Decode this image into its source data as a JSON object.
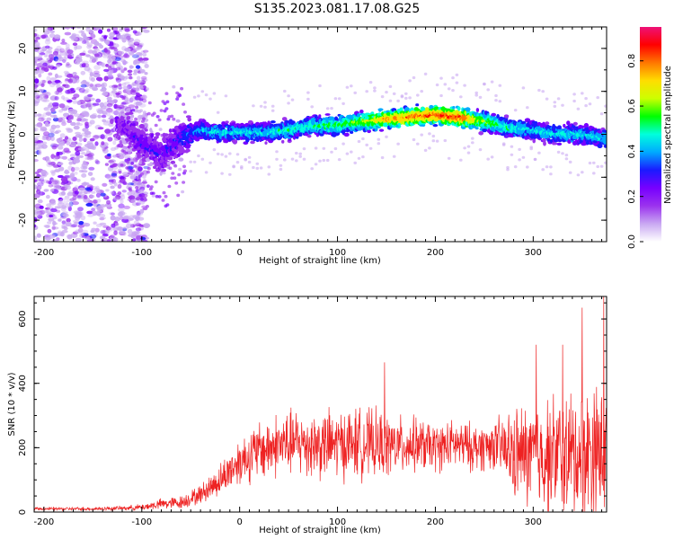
{
  "title": "S135.2023.081.17.08.G25",
  "colors": {
    "snr_line": "#ee2222",
    "axis": "#000000",
    "spectrogram_scale": [
      "#ffffff",
      "#c9a8f2",
      "#9b33ee",
      "#7700ff",
      "#1a1aff",
      "#00aaff",
      "#00ffdd",
      "#00ff00",
      "#ccff00",
      "#ffdd00",
      "#ff7700",
      "#ff0000",
      "#ee1177"
    ]
  },
  "chart_data": [
    {
      "type": "heatmap",
      "xlabel": "Height of straight line (km)",
      "ylabel": "Frequency (Hz)",
      "xlim": [
        -210,
        375
      ],
      "ylim": [
        -25,
        25
      ],
      "x_ticks": [
        -200,
        -100,
        0,
        100,
        200,
        300
      ],
      "x_tick_labels": [
        "-200",
        "-100",
        "0",
        "100",
        "200",
        "300"
      ],
      "y_ticks": [
        -20,
        -10,
        0,
        10,
        20
      ],
      "y_tick_labels": [
        "-20",
        "-10",
        "0",
        "10",
        "20"
      ],
      "colorbar": {
        "label": "Normalized spectral amplitude",
        "range": [
          0,
          0.95
        ],
        "ticks": [
          0.0,
          0.2,
          0.4,
          0.6,
          0.8
        ],
        "tick_labels": [
          "0.0",
          "0.2",
          "0.4",
          "0.6",
          "0.8"
        ]
      },
      "ridge": {
        "x": [
          -120,
          -100,
          -80,
          -60,
          -40,
          -20,
          0,
          25,
          50,
          75,
          100,
          125,
          150,
          175,
          200,
          225,
          250,
          275,
          300,
          325,
          350,
          375
        ],
        "freq": [
          2,
          -2,
          -5,
          -1,
          1,
          0.5,
          0.5,
          0.5,
          1,
          2,
          2,
          3,
          3.5,
          4,
          4.5,
          4,
          3,
          1.5,
          1,
          0,
          0,
          -1
        ],
        "peak_amplitude": [
          0.2,
          0.25,
          0.25,
          0.3,
          0.4,
          0.45,
          0.45,
          0.45,
          0.5,
          0.5,
          0.55,
          0.6,
          0.75,
          0.8,
          0.85,
          0.85,
          0.6,
          0.5,
          0.45,
          0.45,
          0.45,
          0.45
        ]
      }
    },
    {
      "type": "line",
      "xlabel": "Height of straight line (km)",
      "ylabel": "SNR (10 * v/v)",
      "xlim": [
        -210,
        375
      ],
      "ylim": [
        0,
        670
      ],
      "x_ticks": [
        -200,
        -100,
        0,
        100,
        200,
        300
      ],
      "x_tick_labels": [
        "-200",
        "-100",
        "0",
        "100",
        "200",
        "300"
      ],
      "y_ticks": [
        0,
        200,
        400,
        600
      ],
      "y_tick_labels": [
        "0",
        "200",
        "400",
        "600"
      ],
      "series": [
        {
          "x": [
            -210,
            -180,
            -150,
            -120,
            -100,
            -80,
            -60,
            -40,
            -20,
            0,
            20,
            40,
            60,
            80,
            100,
            120,
            140,
            160,
            180,
            200,
            220,
            240,
            260,
            280,
            300,
            320,
            340,
            360,
            375
          ],
          "mean": [
            10,
            10,
            10,
            12,
            15,
            25,
            30,
            55,
            100,
            160,
            190,
            210,
            215,
            210,
            210,
            215,
            210,
            205,
            210,
            200,
            210,
            200,
            210,
            180,
            175,
            180,
            175,
            190,
            190
          ],
          "spread": [
            6,
            6,
            6,
            8,
            12,
            20,
            25,
            35,
            60,
            90,
            110,
            120,
            125,
            130,
            130,
            130,
            125,
            110,
            100,
            90,
            90,
            90,
            90,
            170,
            200,
            220,
            240,
            260,
            250
          ],
          "peaks": [
            [
              350,
              635
            ],
            [
              372,
              670
            ],
            [
              303,
              520
            ],
            [
              148,
              465
            ],
            [
              330,
              520
            ]
          ]
        }
      ]
    }
  ]
}
